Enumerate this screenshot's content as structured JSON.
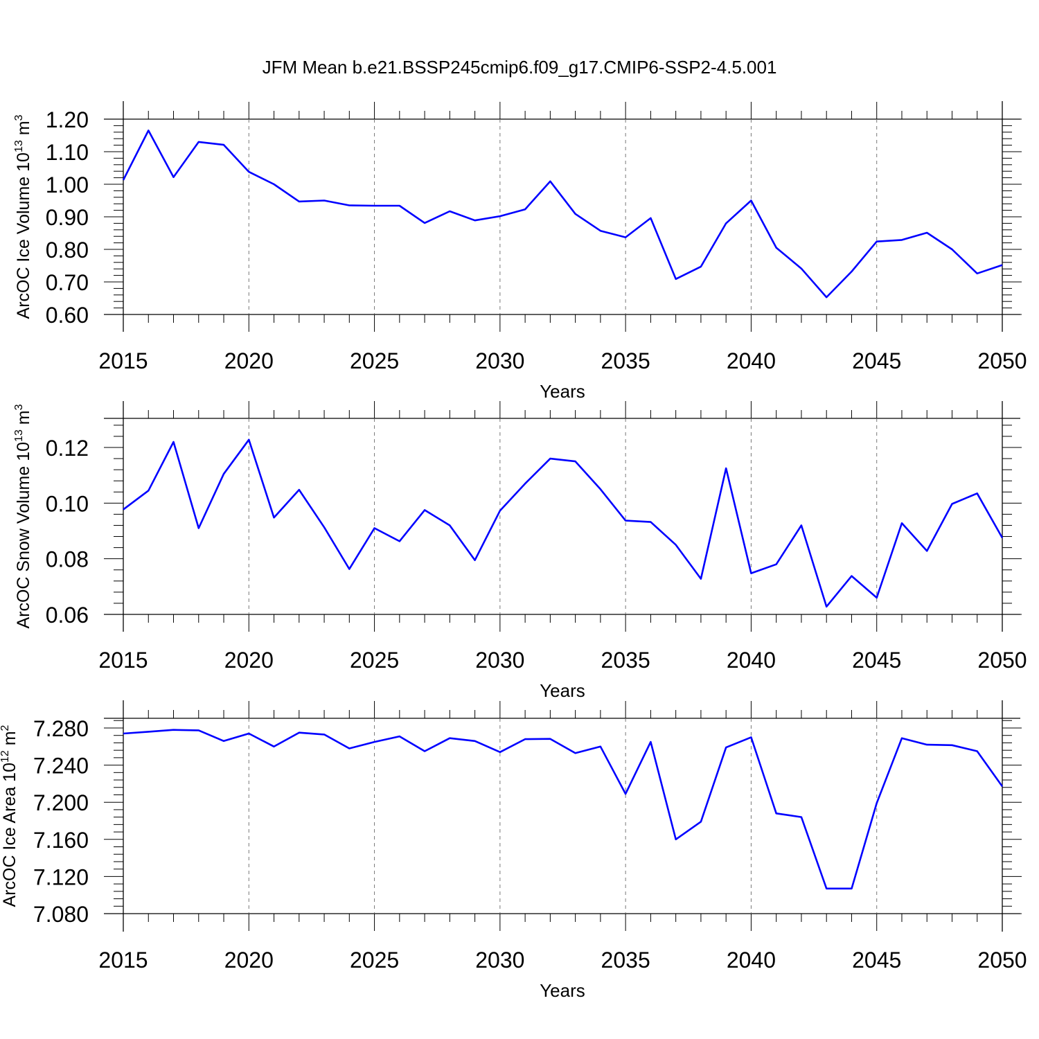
{
  "title": "JFM Mean b.e21.BSSP245cmip6.f09_g17.CMIP6-SSP2-4.5.001",
  "line_color": "#0000ff",
  "chart_data": [
    {
      "type": "line",
      "ylabel_main": "ArcOC Ice Volume 10",
      "ylabel_exp": "13",
      "ylabel_unit": "m",
      "ylabel_unit_exp": "3",
      "xlabel": "Years",
      "xlim": [
        2015,
        2050
      ],
      "ylim": [
        0.55,
        1.2
      ],
      "ytick_values": [
        0.6,
        0.7,
        0.8,
        0.9,
        1.0,
        1.1,
        1.2
      ],
      "ytick_labels": [
        "0.60",
        "0.70",
        "0.80",
        "0.90",
        "1.00",
        "1.10",
        "1.20"
      ],
      "xtick_values": [
        2015,
        2020,
        2025,
        2030,
        2035,
        2040,
        2045,
        2050
      ],
      "xtick_labels": [
        "2015",
        "2020",
        "2025",
        "2030",
        "2035",
        "2040",
        "2045",
        "2050"
      ],
      "grid": "vertical dashed at major x ticks",
      "series": [
        {
          "x": [
            2015,
            2016,
            2017,
            2018,
            2019,
            2020,
            2021,
            2022,
            2023,
            2024,
            2025,
            2026,
            2027,
            2028,
            2029,
            2030,
            2031,
            2032,
            2033,
            2034,
            2035,
            2036,
            2037,
            2038,
            2039,
            2040,
            2041,
            2042,
            2043,
            2044,
            2045,
            2046,
            2047,
            2048,
            2049,
            2050
          ],
          "values": [
            1.013,
            1.165,
            1.022,
            1.13,
            1.121,
            1.038,
            1.0,
            0.947,
            0.95,
            0.935,
            0.934,
            0.934,
            0.881,
            0.917,
            0.889,
            0.902,
            0.923,
            1.009,
            0.909,
            0.857,
            0.837,
            0.896,
            0.709,
            0.747,
            0.88,
            0.95,
            0.805,
            0.741,
            0.653,
            0.732,
            0.824,
            0.829,
            0.851,
            0.8,
            0.726,
            0.752
          ]
        }
      ]
    },
    {
      "type": "line",
      "ylabel_main": "ArcOC Snow Volume 10",
      "ylabel_exp": "13",
      "ylabel_unit": "m",
      "ylabel_unit_exp": "3",
      "xlabel": "Years",
      "xlim": [
        2015,
        2050
      ],
      "ylim": [
        0.055,
        0.13
      ],
      "ytick_values": [
        0.06,
        0.08,
        0.1,
        0.12
      ],
      "ytick_labels": [
        "0.06",
        "0.08",
        "0.10",
        "0.12"
      ],
      "xtick_values": [
        2015,
        2020,
        2025,
        2030,
        2035,
        2040,
        2045,
        2050
      ],
      "xtick_labels": [
        "2015",
        "2020",
        "2025",
        "2030",
        "2035",
        "2040",
        "2045",
        "2050"
      ],
      "grid": "vertical dashed at major x ticks",
      "series": [
        {
          "x": [
            2015,
            2016,
            2017,
            2018,
            2019,
            2020,
            2021,
            2022,
            2023,
            2024,
            2025,
            2026,
            2027,
            2028,
            2029,
            2030,
            2031,
            2032,
            2033,
            2034,
            2035,
            2036,
            2037,
            2038,
            2039,
            2040,
            2041,
            2042,
            2043,
            2044,
            2045,
            2046,
            2047,
            2048,
            2049,
            2050
          ],
          "values": [
            0.0977,
            0.1045,
            0.122,
            0.091,
            0.1105,
            0.1228,
            0.0948,
            0.1048,
            0.0913,
            0.0763,
            0.091,
            0.0863,
            0.0975,
            0.092,
            0.0795,
            0.0973,
            0.107,
            0.116,
            0.115,
            0.105,
            0.0937,
            0.0932,
            0.085,
            0.0728,
            0.1125,
            0.0748,
            0.078,
            0.092,
            0.0628,
            0.0738,
            0.066,
            0.0928,
            0.0828,
            0.0997,
            0.1035,
            0.0875
          ]
        }
      ]
    },
    {
      "type": "line",
      "ylabel_main": "ArcOC Ice Area 10",
      "ylabel_exp": "12",
      "ylabel_unit": "m",
      "ylabel_unit_exp": "2",
      "xlabel": "Years",
      "xlim": [
        2015,
        2050
      ],
      "ylim": [
        7.08,
        7.29
      ],
      "ytick_values": [
        7.08,
        7.12,
        7.16,
        7.2,
        7.24,
        7.28
      ],
      "ytick_labels": [
        "7.080",
        "7.120",
        "7.160",
        "7.200",
        "7.240",
        "7.280"
      ],
      "xtick_values": [
        2015,
        2020,
        2025,
        2030,
        2035,
        2040,
        2045,
        2050
      ],
      "xtick_labels": [
        "2015",
        "2020",
        "2025",
        "2030",
        "2035",
        "2040",
        "2045",
        "2050"
      ],
      "grid": "vertical dashed at major x ticks",
      "series": [
        {
          "x": [
            2015,
            2016,
            2017,
            2018,
            2019,
            2020,
            2021,
            2022,
            2023,
            2024,
            2025,
            2026,
            2027,
            2028,
            2029,
            2030,
            2031,
            2032,
            2033,
            2034,
            2035,
            2036,
            2037,
            2038,
            2039,
            2040,
            2041,
            2042,
            2043,
            2044,
            2045,
            2046,
            2047,
            2048,
            2049,
            2050
          ],
          "values": [
            7.274,
            7.276,
            7.278,
            7.2775,
            7.266,
            7.274,
            7.26,
            7.275,
            7.273,
            7.258,
            7.265,
            7.271,
            7.255,
            7.269,
            7.266,
            7.254,
            7.268,
            7.2683,
            7.253,
            7.26,
            7.209,
            7.265,
            7.16,
            7.179,
            7.259,
            7.27,
            7.188,
            7.184,
            7.107,
            7.107,
            7.199,
            7.269,
            7.262,
            7.2615,
            7.255,
            7.217
          ]
        }
      ]
    }
  ]
}
